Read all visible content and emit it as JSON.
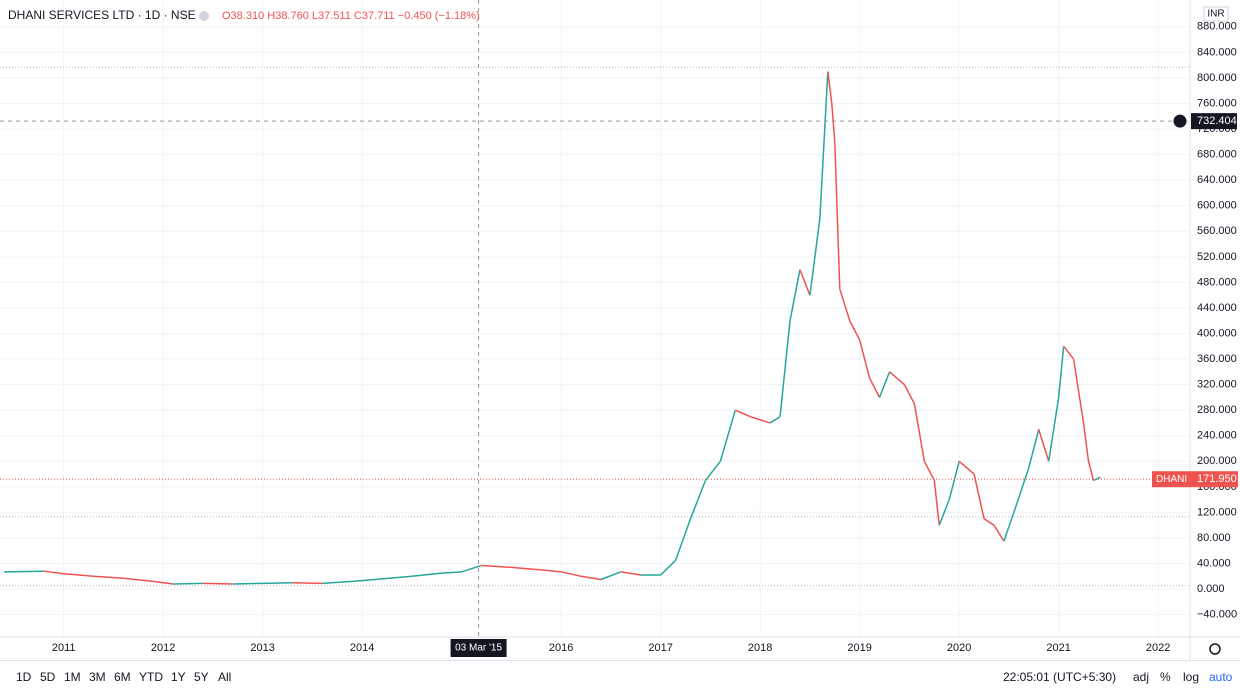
{
  "header": {
    "symbol": "DHANI SERVICES LTD · 1D · NSE",
    "ohlc": "O38.310 H38.760 L37.511 C37.711 −0.450 (−1.18%)"
  },
  "currency": "INR",
  "toolbar": {
    "ranges": [
      "1D",
      "5D",
      "1M",
      "3M",
      "6M",
      "YTD",
      "1Y",
      "5Y",
      "All"
    ],
    "time": "22:05:01 (UTC+5:30)",
    "options": [
      "adj",
      "%",
      "log",
      "auto"
    ]
  },
  "chart_data": {
    "type": "line",
    "up_color": "#26a69a",
    "down_color": "#ef5350",
    "x": [
      2010.4,
      2010.8,
      2011.0,
      2011.3,
      2011.6,
      2011.9,
      2012.1,
      2012.4,
      2012.7,
      2013.0,
      2013.3,
      2013.6,
      2013.9,
      2014.2,
      2014.5,
      2014.8,
      2015.0,
      2015.2,
      2015.5,
      2015.8,
      2016.0,
      2016.2,
      2016.4,
      2016.6,
      2016.8,
      2017.0,
      2017.15,
      2017.3,
      2017.45,
      2017.6,
      2017.75,
      2017.9,
      2018.1,
      2018.2,
      2018.3,
      2018.4,
      2018.5,
      2018.6,
      2018.68,
      2018.72,
      2018.75,
      2018.8,
      2018.9,
      2019.0,
      2019.1,
      2019.2,
      2019.3,
      2019.45,
      2019.55,
      2019.65,
      2019.75,
      2019.8,
      2019.9,
      2020.0,
      2020.15,
      2020.25,
      2020.35,
      2020.45,
      2020.55,
      2020.7,
      2020.8,
      2020.9,
      2021.0,
      2021.05,
      2021.15,
      2021.25,
      2021.3,
      2021.35,
      2021.42
    ],
    "values": [
      27,
      28,
      24,
      20,
      17,
      12,
      8,
      9,
      8,
      9,
      10,
      9,
      12,
      16,
      20,
      25,
      27,
      37,
      34,
      30,
      27,
      20,
      15,
      27,
      22,
      22,
      45,
      110,
      170,
      200,
      280,
      270,
      260,
      270,
      420,
      500,
      460,
      580,
      810,
      760,
      700,
      470,
      420,
      390,
      330,
      300,
      340,
      320,
      290,
      200,
      170,
      100,
      140,
      200,
      180,
      110,
      100,
      75,
      120,
      190,
      250,
      200,
      300,
      380,
      360,
      260,
      200,
      170,
      175
    ],
    "xlim": [
      2010.36,
      2022.32
    ],
    "xticks": [
      2011,
      2012,
      2013,
      2014,
      2016,
      2017,
      2018,
      2019,
      2020,
      2021,
      2022
    ],
    "ylim": [
      -75,
      922
    ],
    "yticks": [
      {
        "value": -40,
        "label": "−40.000"
      },
      {
        "value": 0,
        "label": "0.000"
      },
      {
        "value": 40,
        "label": "40.000"
      },
      {
        "value": 80,
        "label": "80.000"
      },
      {
        "value": 120,
        "label": "120.000"
      },
      {
        "value": 160,
        "label": "160.000"
      },
      {
        "value": 200,
        "label": "200.000"
      },
      {
        "value": 240,
        "label": "240.000"
      },
      {
        "value": 280,
        "label": "280.000"
      },
      {
        "value": 320,
        "label": "320.000"
      },
      {
        "value": 360,
        "label": "360.000"
      },
      {
        "value": 400,
        "label": "400.000"
      },
      {
        "value": 440,
        "label": "440.000"
      },
      {
        "value": 480,
        "label": "480.000"
      },
      {
        "value": 520,
        "label": "520.000"
      },
      {
        "value": 560,
        "label": "560.000"
      },
      {
        "value": 600,
        "label": "600.000"
      },
      {
        "value": 640,
        "label": "640.000"
      },
      {
        "value": 680,
        "label": "680.000"
      },
      {
        "value": 720,
        "label": "720.000"
      },
      {
        "value": 760,
        "label": "760.000"
      },
      {
        "value": 800,
        "label": "800.000"
      },
      {
        "value": 840,
        "label": "840.000"
      },
      {
        "value": 880,
        "label": "880.000"
      }
    ],
    "grid": true,
    "levels": [
      817,
      113,
      5
    ],
    "crosshair": {
      "x": 2015.17,
      "x_label": "03 Mar '15",
      "y": 732.404
    },
    "last_price": {
      "name": "DHANI",
      "value": 171.95,
      "label": "171.950",
      "color": "#ef5350"
    }
  }
}
